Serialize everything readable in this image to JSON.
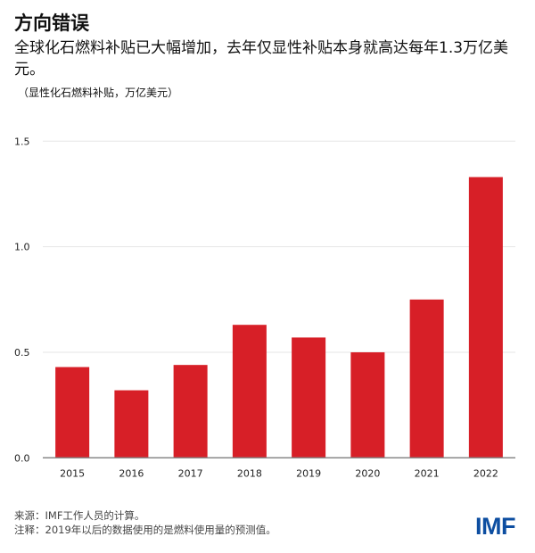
{
  "header": {
    "title": "方向错误",
    "subtitle": "全球化石燃料补贴已大幅增加，去年仅显性补贴本身就高达每年1.3万亿美元。",
    "unit_label": "（显性化石燃料补贴，万亿美元）"
  },
  "chart_data": {
    "type": "bar",
    "categories": [
      "2015",
      "2016",
      "2017",
      "2018",
      "2019",
      "2020",
      "2021",
      "2022"
    ],
    "values": [
      0.43,
      0.32,
      0.44,
      0.63,
      0.57,
      0.5,
      0.75,
      1.33
    ],
    "title": "方向错误",
    "ylabel": "（显性化石燃料补贴，万亿美元）",
    "ylim": [
      0,
      1.5
    ],
    "yticks": [
      "0.0",
      "0.5",
      "1.0",
      "1.5"
    ],
    "grid": true,
    "bar_color": "#d71f27"
  },
  "footer": {
    "source": "来源：IMF工作人员的计算。",
    "note": "注释：2019年以后的数据使用的是燃料使用量的预测值。",
    "logo": "IMF",
    "logo_color": "#0d4ea1"
  }
}
